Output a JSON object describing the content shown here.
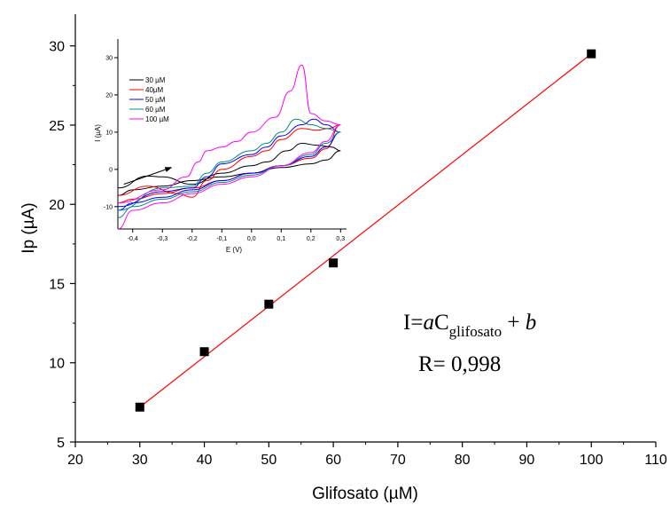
{
  "chart_data": [
    {
      "type": "scatter",
      "xlabel": "Glifosato (µM)",
      "ylabel": "Ip (µA)",
      "xlim": [
        20,
        110
      ],
      "ylim": [
        5,
        32
      ],
      "xticks": [
        20,
        30,
        40,
        50,
        60,
        70,
        80,
        90,
        100,
        110
      ],
      "yticks": [
        5,
        10,
        15,
        20,
        25,
        30
      ],
      "series": [
        {
          "points": [
            [
              30,
              7.2
            ],
            [
              40,
              10.7
            ],
            [
              50,
              13.7
            ],
            [
              60,
              16.3
            ],
            [
              100,
              29.5
            ]
          ],
          "color": "#000000",
          "marker": "square"
        }
      ],
      "fit_line": {
        "x": [
          30,
          100
        ],
        "y": [
          7.2,
          29.5
        ],
        "color": "#ff0000"
      },
      "annotation": {
        "equation": {
          "prefix": "I=",
          "a": "a",
          "c": "C",
          "subscript": "glifosato",
          "plus": " + ",
          "b": "b"
        },
        "r_text": "R= 0,998"
      }
    },
    {
      "type": "line",
      "xlabel": "E (V)",
      "ylabel": "I (µA)",
      "xlim": [
        -0.45,
        0.32
      ],
      "ylim": [
        -16,
        35
      ],
      "xticks": [
        "-0,4",
        "-0,3",
        "-0,2",
        "-0,1",
        "0,0",
        "0,1",
        "0,2",
        "0,3"
      ],
      "yticks": [
        "-10",
        "0",
        "10",
        "20",
        "30"
      ],
      "legend": {
        "placement": "top-left"
      },
      "series": [
        {
          "name": "30 µM",
          "color": "#000000",
          "forward": [
            [
              -0.45,
              -7
            ],
            [
              -0.4,
              -5.5
            ],
            [
              -0.3,
              -4.5
            ],
            [
              -0.2,
              -3
            ],
            [
              -0.1,
              -2
            ],
            [
              0.0,
              -1
            ],
            [
              0.1,
              0.5
            ],
            [
              0.2,
              1.5
            ],
            [
              0.25,
              2.5
            ],
            [
              0.3,
              5
            ]
          ],
          "reverse": [
            [
              0.3,
              5
            ],
            [
              0.27,
              6
            ],
            [
              0.22,
              6.5
            ],
            [
              0.17,
              7
            ],
            [
              0.12,
              5
            ],
            [
              0.05,
              2
            ],
            [
              0.0,
              1
            ],
            [
              -0.1,
              -1
            ],
            [
              -0.2,
              -4
            ],
            [
              -0.3,
              -2
            ],
            [
              -0.35,
              -1.8
            ],
            [
              -0.45,
              -5
            ]
          ]
        },
        {
          "name": "40μM",
          "color": "#ff0000",
          "forward": [
            [
              -0.45,
              -9
            ],
            [
              -0.4,
              -8
            ],
            [
              -0.3,
              -6.5
            ],
            [
              -0.2,
              -5
            ],
            [
              -0.1,
              -3
            ],
            [
              0.0,
              -1
            ],
            [
              0.1,
              1
            ],
            [
              0.2,
              3
            ],
            [
              0.25,
              5.5
            ],
            [
              0.3,
              12
            ]
          ],
          "reverse": [
            [
              0.3,
              12
            ],
            [
              0.26,
              11
            ],
            [
              0.22,
              10.5
            ],
            [
              0.17,
              11
            ],
            [
              0.1,
              8
            ],
            [
              0.05,
              5
            ],
            [
              0.0,
              3.5
            ],
            [
              -0.1,
              0
            ],
            [
              -0.15,
              -3
            ],
            [
              -0.2,
              -7.5
            ],
            [
              -0.25,
              -6.5
            ],
            [
              -0.35,
              -4.5
            ],
            [
              -0.45,
              -7
            ]
          ]
        },
        {
          "name": "50 µM",
          "color": "#0000ff",
          "forward": [
            [
              -0.45,
              -11
            ],
            [
              -0.4,
              -9
            ],
            [
              -0.3,
              -7.5
            ],
            [
              -0.2,
              -5.5
            ],
            [
              -0.1,
              -3
            ],
            [
              0.0,
              -1
            ],
            [
              0.1,
              1
            ],
            [
              0.2,
              3.5
            ],
            [
              0.25,
              6
            ],
            [
              0.3,
              10
            ]
          ],
          "reverse": [
            [
              0.3,
              10
            ],
            [
              0.25,
              12
            ],
            [
              0.21,
              13.5
            ],
            [
              0.17,
              12
            ],
            [
              0.1,
              9
            ],
            [
              0.05,
              6
            ],
            [
              0.0,
              4
            ],
            [
              -0.1,
              1.5
            ],
            [
              -0.15,
              -2
            ],
            [
              -0.2,
              -5
            ],
            [
              -0.3,
              -6
            ],
            [
              -0.45,
              -10
            ]
          ]
        },
        {
          "name": "60 µM",
          "color": "#008b8b",
          "forward": [
            [
              -0.45,
              -13
            ],
            [
              -0.4,
              -10
            ],
            [
              -0.3,
              -8
            ],
            [
              -0.2,
              -6
            ],
            [
              -0.1,
              -3.5
            ],
            [
              0.0,
              -1.5
            ],
            [
              0.1,
              1
            ],
            [
              0.2,
              4
            ],
            [
              0.25,
              7
            ],
            [
              0.3,
              10
            ]
          ],
          "reverse": [
            [
              0.3,
              10
            ],
            [
              0.25,
              11
            ],
            [
              0.2,
              12
            ],
            [
              0.15,
              13.5
            ],
            [
              0.1,
              10
            ],
            [
              0.05,
              7
            ],
            [
              0.0,
              5
            ],
            [
              -0.1,
              2
            ],
            [
              -0.15,
              -1
            ],
            [
              -0.2,
              -4.5
            ],
            [
              -0.3,
              -5
            ],
            [
              -0.45,
              -11
            ]
          ]
        },
        {
          "name": "100 µM",
          "color": "#ff00ff",
          "forward": [
            [
              -0.45,
              -16
            ],
            [
              -0.4,
              -11
            ],
            [
              -0.3,
              -9
            ],
            [
              -0.2,
              -6.5
            ],
            [
              -0.1,
              -4
            ],
            [
              0.0,
              -2
            ],
            [
              0.1,
              1
            ],
            [
              0.2,
              4.5
            ],
            [
              0.25,
              7.5
            ],
            [
              0.3,
              12
            ]
          ],
          "reverse": [
            [
              0.3,
              12
            ],
            [
              0.25,
              13
            ],
            [
              0.2,
              15
            ],
            [
              0.17,
              28
            ],
            [
              0.13,
              21
            ],
            [
              0.08,
              14
            ],
            [
              0.0,
              10
            ],
            [
              -0.05,
              7.5
            ],
            [
              -0.1,
              6
            ],
            [
              -0.15,
              5
            ],
            [
              -0.18,
              2
            ],
            [
              -0.22,
              -2
            ],
            [
              -0.3,
              -5.5
            ],
            [
              -0.45,
              -9
            ]
          ]
        }
      ],
      "arrow": {
        "from": [
          -0.43,
          -4
        ],
        "to": [
          -0.27,
          0.5
        ]
      }
    }
  ]
}
